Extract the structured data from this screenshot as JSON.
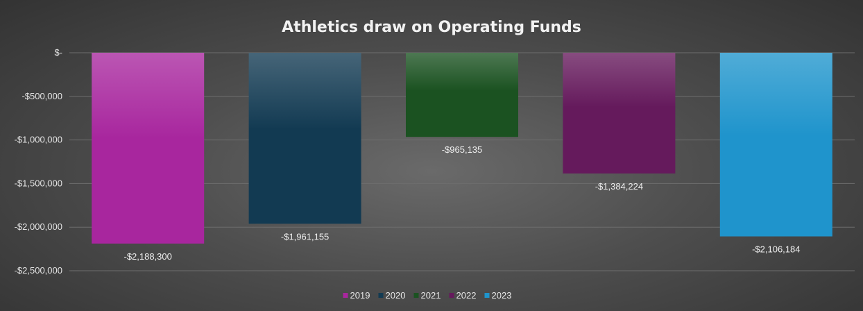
{
  "chart_data": {
    "type": "bar",
    "title": "Athletics draw on Operating Funds",
    "xlabel": "",
    "ylabel": "",
    "categories": [
      "2019",
      "2020",
      "2021",
      "2022",
      "2023"
    ],
    "series": [
      {
        "name": "2019",
        "value": -2188300,
        "label": "-$2,188,300",
        "color": "#a8269e"
      },
      {
        "name": "2020",
        "value": -1961155,
        "label": "-$1,961,155",
        "color": "#123a52"
      },
      {
        "name": "2021",
        "value": -965135,
        "label": "-$965,135",
        "color": "#1b5221"
      },
      {
        "name": "2022",
        "value": -1384224,
        "label": "-$1,384,224",
        "color": "#651a5c"
      },
      {
        "name": "2023",
        "value": -2106184,
        "label": "-$2,106,184",
        "color": "#1f94cc"
      }
    ],
    "ylim": [
      -2500000,
      0
    ],
    "yticks": [
      {
        "value": 0,
        "label": "$-"
      },
      {
        "value": -500000,
        "label": "-$500,000"
      },
      {
        "value": -1000000,
        "label": "-$1,000,000"
      },
      {
        "value": -1500000,
        "label": "-$1,500,000"
      },
      {
        "value": -2000000,
        "label": "-$2,000,000"
      },
      {
        "value": -2500000,
        "label": "-$2,500,000"
      }
    ],
    "grid": true,
    "legend_position": "bottom"
  }
}
